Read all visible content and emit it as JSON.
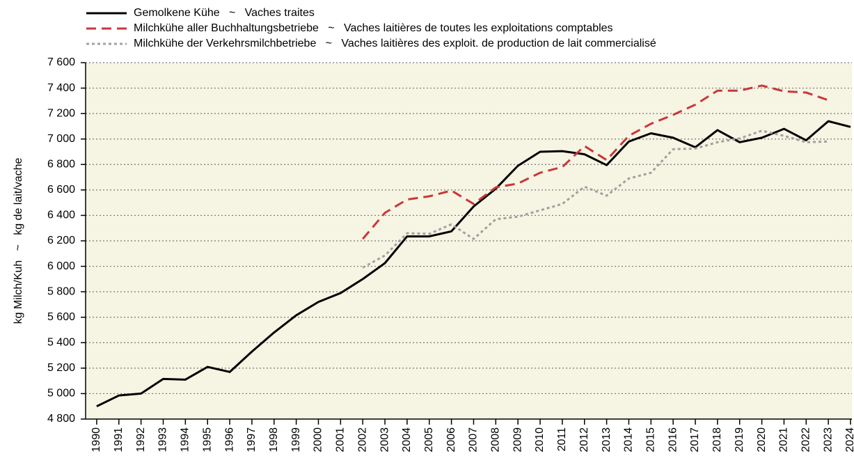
{
  "chart_data": {
    "type": "line",
    "y_label": "kg Milch/Kuh   ~   kg de lait/vache",
    "x": [
      1990,
      1991,
      1992,
      1993,
      1994,
      1995,
      1996,
      1997,
      1998,
      1999,
      2000,
      2001,
      2002,
      2003,
      2004,
      2005,
      2006,
      2007,
      2008,
      2009,
      2010,
      2011,
      2012,
      2013,
      2014,
      2015,
      2016,
      2017,
      2018,
      2019,
      2020,
      2021,
      2022,
      2023,
      2024
    ],
    "series": [
      {
        "name": "Gemolkene Kühe   ~   Vaches traites",
        "color": "#000000",
        "dash": "solid",
        "values": [
          4900,
          4985,
          5000,
          5115,
          5110,
          5210,
          5170,
          5330,
          5480,
          5615,
          5720,
          5790,
          5900,
          6025,
          6235,
          6235,
          6275,
          6470,
          6610,
          6790,
          6900,
          6905,
          6880,
          6795,
          6980,
          7045,
          7010,
          6935,
          7070,
          6975,
          7010,
          7080,
          6990,
          7140,
          7095
        ]
      },
      {
        "name": "Milchkühe aller Buchhaltungsbetriebe   ~   Vaches laitières de toutes les exploitations comptables",
        "color": "#c8373c",
        "dash": "dashed",
        "values": [
          null,
          null,
          null,
          null,
          null,
          null,
          null,
          null,
          null,
          null,
          null,
          null,
          6215,
          6420,
          6525,
          6550,
          6595,
          6490,
          6620,
          6650,
          6735,
          6780,
          6945,
          6835,
          7025,
          7120,
          7190,
          7270,
          7380,
          7380,
          7420,
          7375,
          7365,
          7305,
          null
        ]
      },
      {
        "name": "Milchkühe der Verkehrsmilchbetriebe   ~   Vaches laitières des exploit. de production de lait commercialisé",
        "color": "#a0a0a0",
        "dash": "dotted",
        "values": [
          null,
          null,
          null,
          null,
          null,
          null,
          null,
          null,
          null,
          null,
          null,
          null,
          5990,
          6085,
          6260,
          6255,
          6330,
          6215,
          6370,
          6390,
          6440,
          6490,
          6625,
          6555,
          6690,
          6735,
          6920,
          6925,
          6975,
          7005,
          7065,
          7025,
          6975,
          6980,
          null
        ]
      }
    ],
    "xlim": [
      1989.5,
      2024
    ],
    "xticks": [
      1990,
      1991,
      1992,
      1993,
      1994,
      1995,
      1996,
      1997,
      1998,
      1999,
      2000,
      2001,
      2002,
      2003,
      2004,
      2005,
      2006,
      2007,
      2008,
      2009,
      2010,
      2011,
      2012,
      2013,
      2014,
      2015,
      2016,
      2017,
      2018,
      2019,
      2020,
      2021,
      2022,
      2023,
      2024
    ],
    "ylim": [
      4800,
      7600
    ],
    "yticks": [
      {
        "value": 4800,
        "label": "4 800"
      },
      {
        "value": 5000,
        "label": "5 000"
      },
      {
        "value": 5200,
        "label": "5 200"
      },
      {
        "value": 5400,
        "label": "5 400"
      },
      {
        "value": 5600,
        "label": "5 600"
      },
      {
        "value": 5800,
        "label": "5 800"
      },
      {
        "value": 6000,
        "label": "6 000"
      },
      {
        "value": 6200,
        "label": "6 200"
      },
      {
        "value": 6400,
        "label": "6 400"
      },
      {
        "value": 6600,
        "label": "6 600"
      },
      {
        "value": 6800,
        "label": "6 800"
      },
      {
        "value": 7000,
        "label": "7 000"
      },
      {
        "value": 7200,
        "label": "7 200"
      },
      {
        "value": 7400,
        "label": "7 400"
      },
      {
        "value": 7600,
        "label": "7 600"
      }
    ],
    "grid": true,
    "legend": "top"
  }
}
